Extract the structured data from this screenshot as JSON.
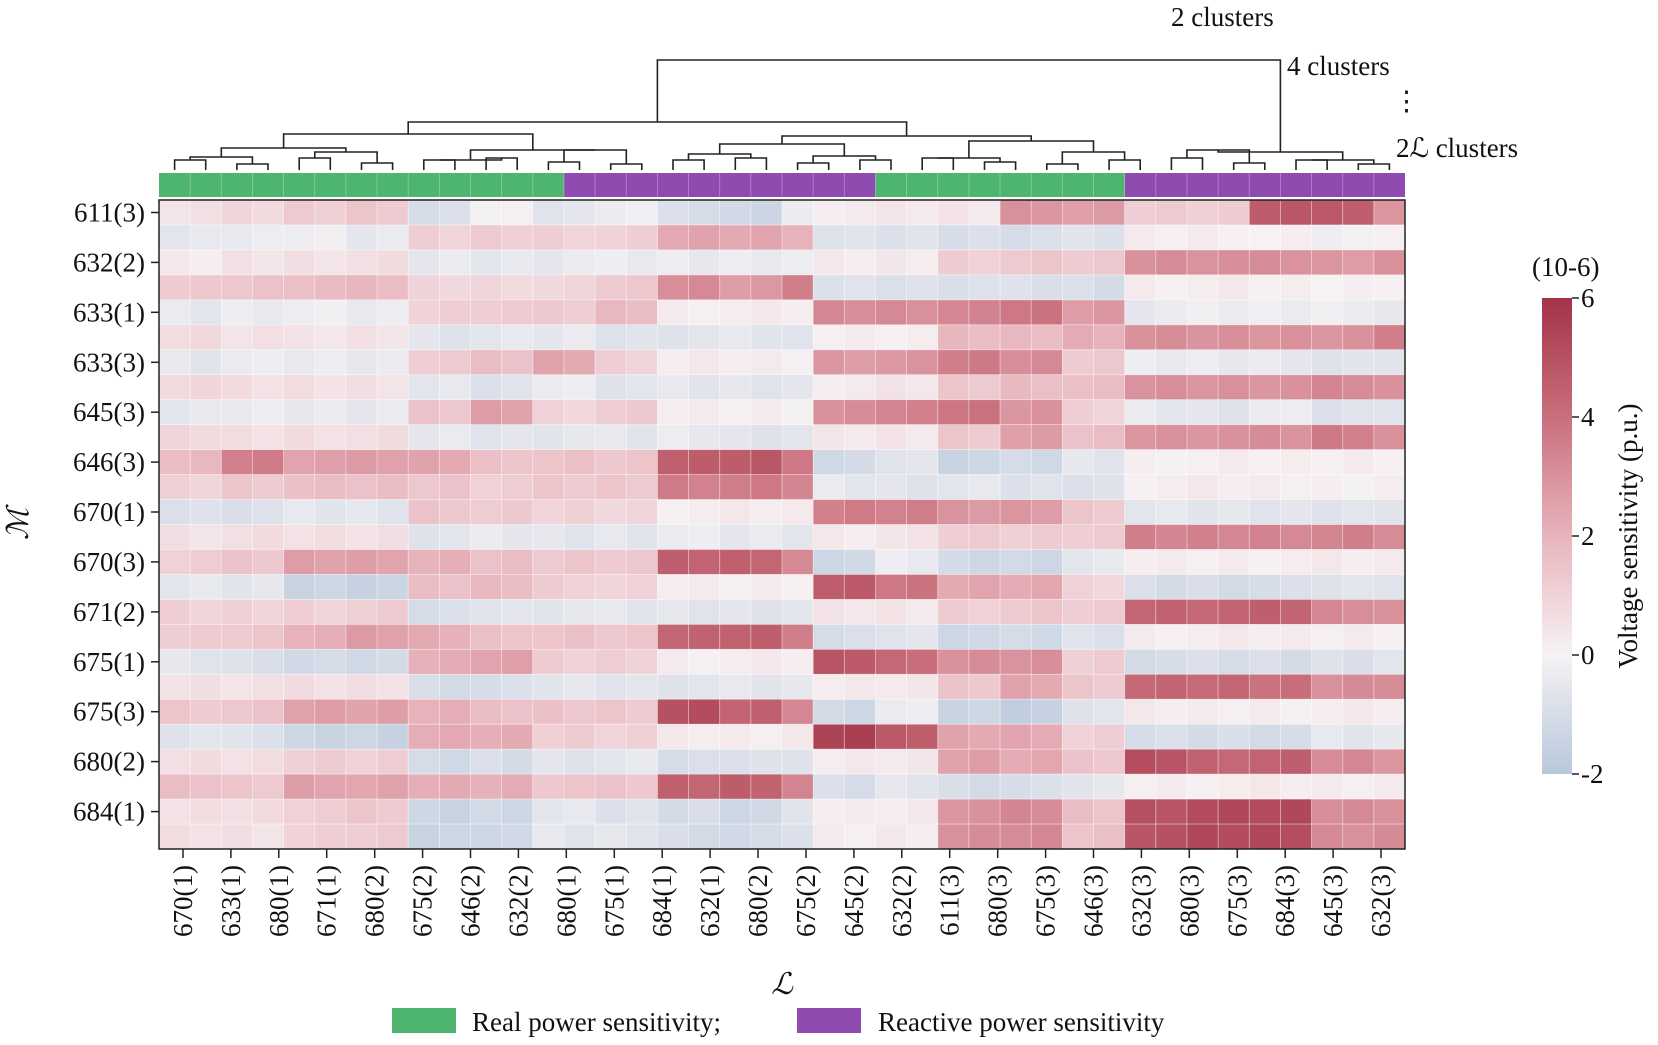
{
  "chart_data": {
    "type": "heatmap",
    "title": "",
    "xlabel": "ℒ",
    "ylabel": "ℳ",
    "x_tick_labels": [
      "670(1)",
      "633(1)",
      "680(1)",
      "671(1)",
      "680(2)",
      "675(2)",
      "646(2)",
      "632(2)",
      "680(1)",
      "675(1)",
      "684(1)",
      "632(1)",
      "680(2)",
      "675(2)",
      "645(2)",
      "632(2)",
      "611(3)",
      "680(3)",
      "675(3)",
      "646(3)",
      "632(3)",
      "680(3)",
      "675(3)",
      "684(3)",
      "645(3)",
      "632(3)"
    ],
    "y_tick_labels": [
      "611(3)",
      "632(2)",
      "633(1)",
      "633(3)",
      "645(3)",
      "646(3)",
      "670(1)",
      "670(3)",
      "671(2)",
      "675(1)",
      "675(3)",
      "680(2)",
      "684(1)"
    ],
    "rows": 26,
    "cols": 40,
    "cluster_annotations": [
      "2 clusters",
      "4 clusters",
      "⋮",
      "2ℒ clusters"
    ],
    "group_bar": [
      {
        "name": "Real power sensitivity",
        "start": 0,
        "end": 13,
        "color": "#4db56e"
      },
      {
        "name": "Reactive power sensitivity",
        "start": 13,
        "end": 23,
        "color": "#8e4cb0"
      },
      {
        "name": "Real power sensitivity",
        "start": 23,
        "end": 31,
        "color": "#4db56e"
      },
      {
        "name": "Reactive power sensitivity",
        "start": 31,
        "end": 40,
        "color": "#8e4cb0"
      }
    ],
    "legend": [
      {
        "label": "Real power sensitivity;",
        "color": "#4db56e"
      },
      {
        "label": "Reactive power sensitivity",
        "color": "#8e4cb0"
      }
    ],
    "colorbar": {
      "label": "Voltage sensitivity (p.u.)",
      "unit": "(10-6)",
      "min": -2,
      "max": 6,
      "ticks": [
        6,
        4,
        2,
        0,
        -2
      ],
      "colors": [
        "#b8c8dc",
        "#f6f2f4",
        "#e8b4bc",
        "#c96f7c",
        "#a33348"
      ]
    },
    "block_col_ranges": [
      [
        0,
        2
      ],
      [
        2,
        4
      ],
      [
        4,
        6
      ],
      [
        6,
        8
      ],
      [
        8,
        10
      ],
      [
        10,
        12
      ],
      [
        12,
        14
      ],
      [
        14,
        16
      ],
      [
        16,
        18
      ],
      [
        18,
        20
      ],
      [
        20,
        21
      ],
      [
        21,
        23
      ],
      [
        23,
        25
      ],
      [
        25,
        27
      ],
      [
        27,
        29
      ],
      [
        29,
        31
      ],
      [
        31,
        33
      ],
      [
        33,
        35
      ],
      [
        35,
        37
      ],
      [
        37,
        39
      ],
      [
        39,
        40
      ]
    ],
    "values_by_row_block": [
      [
        0.6,
        0.8,
        1.2,
        1.4,
        -1.0,
        0.0,
        -0.6,
        -0.2,
        -1.0,
        -1.3,
        -0.4,
        0.3,
        0.3,
        0.4,
        3.0,
        2.6,
        1.2,
        1.2,
        4.8,
        4.6,
        2.8
      ],
      [
        -0.6,
        -0.4,
        -0.2,
        -0.4,
        1.0,
        1.2,
        1.1,
        1.0,
        2.4,
        2.4,
        2.2,
        -0.8,
        -0.8,
        -0.9,
        -0.9,
        -0.8,
        0.2,
        0.2,
        0.0,
        -0.2,
        0.2
      ],
      [
        0.2,
        0.5,
        0.6,
        0.6,
        -0.5,
        -0.5,
        -0.4,
        -0.4,
        -0.4,
        -0.3,
        -0.3,
        0.2,
        0.3,
        1.2,
        1.3,
        1.3,
        3.1,
        3.1,
        3.0,
        2.8,
        3.0
      ],
      [
        1.3,
        1.5,
        1.8,
        1.8,
        0.9,
        0.9,
        0.8,
        1.3,
        3.2,
        2.8,
        3.4,
        -0.8,
        -0.8,
        -0.8,
        -0.9,
        -1.0,
        0.2,
        0.2,
        0.1,
        0.1,
        0.2
      ],
      [
        -0.5,
        -0.3,
        -0.3,
        -0.4,
        1.1,
        1.3,
        1.2,
        1.8,
        0.2,
        0.2,
        0.2,
        3.2,
        3.2,
        3.3,
        3.8,
        2.8,
        -0.4,
        -0.3,
        -0.3,
        -0.2,
        -0.5
      ],
      [
        0.8,
        0.6,
        0.4,
        0.5,
        -0.6,
        -0.6,
        -0.5,
        -0.7,
        -0.6,
        -0.6,
        -0.8,
        0.2,
        0.2,
        1.8,
        1.8,
        2.2,
        3.0,
        3.0,
        3.0,
        3.0,
        3.4
      ],
      [
        -0.5,
        -0.4,
        -0.4,
        -0.4,
        1.3,
        1.6,
        2.4,
        1.1,
        0.2,
        0.2,
        0.2,
        2.8,
        2.8,
        3.6,
        3.2,
        1.4,
        -0.4,
        -0.4,
        -0.4,
        -0.8,
        -0.6
      ],
      [
        0.9,
        0.6,
        0.6,
        0.6,
        -0.6,
        -0.8,
        -0.3,
        -0.6,
        -0.6,
        -0.6,
        -0.6,
        0.3,
        0.4,
        1.4,
        1.8,
        1.6,
        3.0,
        3.0,
        3.0,
        3.2,
        2.9
      ],
      [
        -0.6,
        -0.4,
        -0.4,
        -0.4,
        1.4,
        2.6,
        1.0,
        1.2,
        0.2,
        0.2,
        0.1,
        3.0,
        3.4,
        3.9,
        3.0,
        1.0,
        -0.5,
        -0.6,
        -0.4,
        -0.8,
        -0.6
      ],
      [
        0.8,
        0.6,
        0.7,
        0.6,
        -0.5,
        -0.6,
        -0.5,
        -0.6,
        -0.4,
        -0.6,
        -0.6,
        0.3,
        0.4,
        1.4,
        2.6,
        1.6,
        3.0,
        3.0,
        3.0,
        3.6,
        3.0
      ],
      [
        1.8,
        3.6,
        2.6,
        2.6,
        2.4,
        1.6,
        1.5,
        1.4,
        4.6,
        4.8,
        3.6,
        -1.2,
        -0.6,
        -1.3,
        -1.2,
        -0.6,
        0.1,
        0.1,
        0.1,
        0.2,
        0.2
      ],
      [
        1.0,
        1.4,
        1.6,
        1.6,
        1.5,
        1.2,
        1.3,
        1.4,
        3.6,
        3.6,
        3.4,
        -0.5,
        -0.6,
        -0.6,
        -0.8,
        -0.8,
        0.2,
        0.2,
        0.2,
        0.1,
        0.2
      ],
      [
        -0.8,
        -0.8,
        -0.6,
        -0.6,
        1.5,
        1.2,
        1.0,
        0.9,
        0.2,
        0.2,
        0.2,
        3.6,
        3.6,
        2.8,
        2.8,
        1.4,
        -0.6,
        -0.6,
        -0.6,
        -0.6,
        -0.8
      ],
      [
        0.6,
        0.6,
        0.6,
        0.6,
        -0.6,
        -0.5,
        -0.6,
        -0.5,
        -0.4,
        -0.5,
        -0.5,
        0.3,
        0.4,
        1.2,
        1.2,
        1.3,
        3.4,
        3.4,
        3.4,
        3.4,
        3.2
      ],
      [
        1.2,
        1.4,
        2.6,
        2.6,
        2.0,
        1.6,
        1.4,
        1.4,
        4.4,
        4.4,
        3.2,
        -1.2,
        -0.4,
        -1.2,
        -1.2,
        -0.6,
        0.2,
        0.2,
        0.2,
        0.2,
        0.2
      ],
      [
        -0.6,
        -0.6,
        -1.4,
        -1.4,
        1.6,
        1.8,
        1.2,
        0.9,
        0.2,
        0.2,
        0.2,
        4.6,
        3.8,
        2.4,
        2.4,
        0.9,
        -1.0,
        -1.0,
        -1.0,
        -0.7,
        -0.6
      ],
      [
        1.0,
        1.0,
        1.1,
        1.1,
        -1.0,
        -0.6,
        -0.5,
        -0.6,
        -0.6,
        -0.6,
        -0.6,
        0.4,
        0.4,
        1.2,
        1.3,
        1.2,
        4.4,
        4.4,
        4.4,
        3.2,
        3.0
      ],
      [
        1.2,
        1.4,
        2.2,
        2.6,
        2.2,
        1.6,
        1.5,
        1.4,
        4.4,
        4.6,
        3.4,
        -1.0,
        -0.6,
        -1.2,
        -1.2,
        -0.8,
        0.2,
        0.2,
        0.2,
        0.2,
        0.2
      ],
      [
        -0.6,
        -0.8,
        -1.2,
        -1.2,
        2.2,
        2.6,
        1.1,
        1.1,
        0.2,
        0.2,
        0.2,
        4.8,
        4.2,
        3.0,
        3.0,
        1.2,
        -1.0,
        -1.0,
        -1.0,
        -0.8,
        -0.6
      ],
      [
        0.6,
        0.6,
        0.6,
        0.6,
        -1.0,
        -1.0,
        -0.6,
        -0.6,
        -0.6,
        -0.6,
        -0.6,
        0.3,
        0.4,
        1.4,
        2.4,
        1.4,
        4.2,
        4.2,
        4.0,
        3.2,
        3.0
      ],
      [
        1.4,
        1.4,
        2.6,
        2.6,
        2.2,
        1.6,
        1.5,
        1.4,
        5.0,
        4.4,
        3.4,
        -1.2,
        -0.4,
        -1.4,
        -1.6,
        -0.6,
        0.2,
        0.2,
        0.2,
        0.2,
        0.2
      ],
      [
        -0.6,
        -0.8,
        -1.4,
        -1.4,
        2.2,
        2.2,
        1.2,
        1.1,
        0.2,
        0.2,
        0.3,
        5.6,
        4.6,
        2.4,
        2.4,
        1.0,
        -1.0,
        -1.0,
        -1.0,
        -0.6,
        -0.6
      ],
      [
        0.6,
        0.6,
        1.2,
        1.2,
        -1.2,
        -1.0,
        -0.6,
        -0.6,
        -1.0,
        -0.8,
        -0.6,
        0.2,
        0.3,
        2.6,
        2.4,
        1.4,
        5.0,
        4.4,
        4.4,
        3.2,
        3.0
      ],
      [
        1.6,
        1.4,
        2.6,
        2.4,
        2.2,
        2.2,
        1.5,
        1.4,
        4.4,
        4.6,
        3.4,
        -1.0,
        -0.6,
        -1.0,
        -1.0,
        -0.6,
        0.2,
        0.2,
        0.2,
        0.2,
        0.2
      ],
      [
        0.6,
        0.7,
        1.2,
        1.3,
        -1.4,
        -1.2,
        -0.6,
        -0.8,
        -1.0,
        -1.2,
        -0.8,
        0.2,
        0.3,
        3.0,
        3.2,
        1.6,
        5.0,
        5.2,
        5.2,
        3.2,
        3.2
      ],
      [
        0.6,
        0.6,
        1.0,
        1.2,
        -1.4,
        -1.2,
        -0.6,
        -0.6,
        -1.0,
        -1.2,
        -0.8,
        0.2,
        0.3,
        3.0,
        3.2,
        1.6,
        5.0,
        5.2,
        5.2,
        3.2,
        3.2
      ]
    ]
  }
}
